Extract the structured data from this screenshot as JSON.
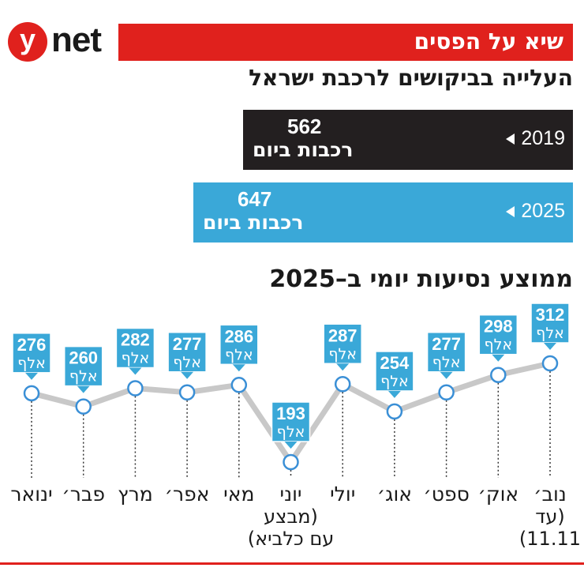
{
  "brand": {
    "logo_letter": "y",
    "logo_word": "net"
  },
  "header": {
    "banner": "שיא על הפסים",
    "subtitle": "העלייה בביקושים לרכבת ישראל"
  },
  "stats": [
    {
      "year": "2019",
      "value": "562",
      "unit": "רכבות ביום",
      "color": "#231f20"
    },
    {
      "year": "2025",
      "value": "647",
      "unit": "רכבות ביום",
      "color": "#3aa8d8"
    }
  ],
  "colors": {
    "accent": "#e0211d",
    "label_box": "#3aa8d8",
    "line": "#c8c8c8",
    "point": "#3a8fd6"
  },
  "chart_data": {
    "type": "line",
    "title": "ממוצע נסיעות יומי ב–2025",
    "unit_label": "אלף",
    "categories": [
      "ינואר",
      "פבר׳",
      "מרץ",
      "אפר׳",
      "מאי",
      "יוני",
      "יולי",
      "אוג׳",
      "ספט׳",
      "אוק׳",
      "נוב׳"
    ],
    "category_notes": {
      "5": [
        "(מבצע",
        "עם כלביא)"
      ],
      "10": [
        "(עד",
        "11.11)"
      ]
    },
    "series": [
      {
        "values": [
          276,
          260,
          282,
          277,
          286,
          193,
          287,
          254,
          277,
          298,
          312
        ]
      }
    ]
  }
}
